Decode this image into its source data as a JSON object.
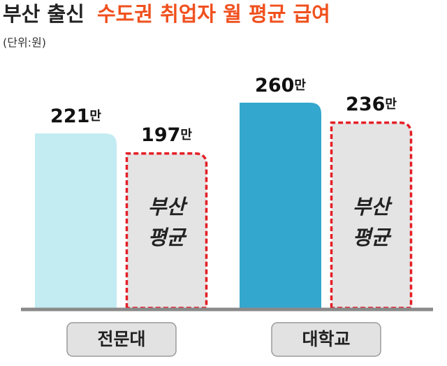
{
  "chart_data": {
    "type": "bar",
    "title_parts": [
      "부산 출신",
      "수도권 취업자 월 평균 급여"
    ],
    "subtitle": "(단위:원)",
    "categories": [
      "전문대",
      "대학교"
    ],
    "series": [
      {
        "colors": [
          "#c3ebf2",
          "#33a7cd"
        ],
        "values": [
          2210000,
          2600000
        ],
        "value_labels": [
          "221만",
          "260만"
        ]
      },
      {
        "label_lines": [
          "부산",
          "평균"
        ],
        "color": "#e4e4e4",
        "border_color": "#e41f26",
        "values": [
          1970000,
          2360000
        ],
        "value_labels": [
          "197만",
          "236만"
        ]
      }
    ],
    "ylim": [
      0,
      2600000
    ]
  }
}
